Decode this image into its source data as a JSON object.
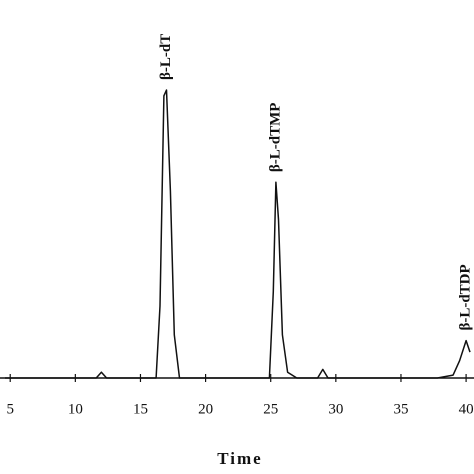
{
  "chart_data": {
    "type": "line",
    "xlabel": "Time",
    "x": [
      4.6,
      9,
      11.6,
      12,
      12.4,
      16.2,
      16.5,
      16.8,
      17,
      17.3,
      17.6,
      18,
      24.9,
      25.2,
      25.4,
      25.6,
      25.9,
      26.3,
      27,
      28.6,
      29,
      29.4,
      37.8,
      39,
      39.5,
      40,
      40.3
    ],
    "series": [
      {
        "color": "#111111",
        "values": [
          0,
          0,
          0,
          2,
          0,
          0,
          25,
          98,
          100,
          65,
          15,
          0,
          0,
          30,
          68,
          55,
          15,
          2,
          0,
          0,
          3,
          0,
          0,
          1,
          6,
          13,
          9
        ]
      }
    ],
    "annotations": [
      {
        "text": "β-L-dT",
        "x": 17
      },
      {
        "text": "β-L-dTMP",
        "x": 25.4
      },
      {
        "text": "β-L-dTDP",
        "x": 40
      }
    ],
    "xlim": [
      4.6,
      40.3
    ],
    "xticks": [
      5,
      10,
      15,
      20,
      25,
      30,
      35,
      40
    ],
    "ylim": [
      0,
      100
    ]
  }
}
